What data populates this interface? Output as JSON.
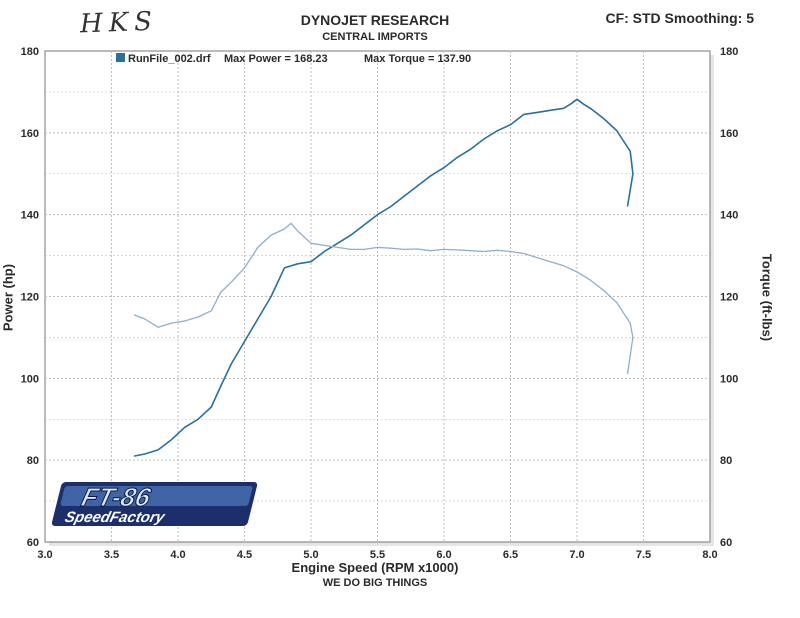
{
  "header": {
    "handwritten": "HKS",
    "title": "DYNOJET RESEARCH",
    "subtitle": "CENTRAL IMPORTS",
    "settings": "CF: STD  Smoothing: 5"
  },
  "footer": {
    "tagline": "WE DO BIG THINGS"
  },
  "logo": {
    "line1": "FT-86",
    "line2": "SpeedFactory",
    "color_dark": "#1d2f6b",
    "color_light": "#5b8fd6"
  },
  "colors": {
    "power": "#2a6f9e",
    "torque": "#8faecb",
    "grid": "#bdbdbd",
    "plot_bg": "#ffffff"
  },
  "chart_data": {
    "type": "line",
    "legend": {
      "run": "RunFile_002.drf",
      "max_power_text": "Max Power = 168.23",
      "max_torque_text": "Max Torque = 137.90"
    },
    "xlabel": "Engine Speed (RPM x1000)",
    "ylabel_left": "Power (hp)",
    "ylabel_right": "Torque (ft-lbs)",
    "xlim": [
      3.0,
      8.0
    ],
    "ylim": [
      60,
      180
    ],
    "x_ticks": [
      "3.0",
      "3.5",
      "4.0",
      "4.5",
      "5.0",
      "5.5",
      "6.0",
      "6.5",
      "7.0",
      "7.5",
      "8.0"
    ],
    "y_ticks_left": [
      "180",
      "160",
      "140",
      "120",
      "100",
      "80",
      "60"
    ],
    "y_ticks_right": [
      "180",
      "160",
      "140",
      "120",
      "100",
      "80",
      "60"
    ],
    "grid": true,
    "series": [
      {
        "name": "Power",
        "x": [
          3.67,
          3.75,
          3.85,
          3.95,
          4.05,
          4.15,
          4.25,
          4.32,
          4.4,
          4.5,
          4.6,
          4.7,
          4.8,
          4.9,
          5.0,
          5.1,
          5.2,
          5.3,
          5.4,
          5.5,
          5.6,
          5.7,
          5.8,
          5.9,
          6.0,
          6.1,
          6.2,
          6.3,
          6.4,
          6.5,
          6.6,
          6.7,
          6.8,
          6.9,
          6.95,
          7.0,
          7.05,
          7.1,
          7.2,
          7.3,
          7.35,
          7.4,
          7.42,
          7.38
        ],
        "values": [
          81,
          81.5,
          82.5,
          85,
          88,
          90,
          93,
          98,
          103.5,
          109,
          114.5,
          120,
          127,
          128,
          128.5,
          131,
          133,
          135,
          137.5,
          140,
          142,
          144.5,
          147,
          149.5,
          151.5,
          154,
          156,
          158.5,
          160.5,
          162,
          164.5,
          165,
          165.5,
          166,
          167,
          168.2,
          167,
          166,
          163.5,
          160.5,
          158,
          155.5,
          150,
          142
        ]
      },
      {
        "name": "Torque",
        "x": [
          3.67,
          3.75,
          3.85,
          3.95,
          4.05,
          4.15,
          4.25,
          4.32,
          4.4,
          4.5,
          4.6,
          4.7,
          4.8,
          4.85,
          4.9,
          5.0,
          5.1,
          5.2,
          5.3,
          5.4,
          5.5,
          5.6,
          5.7,
          5.8,
          5.9,
          6.0,
          6.1,
          6.2,
          6.3,
          6.4,
          6.5,
          6.6,
          6.7,
          6.8,
          6.9,
          7.0,
          7.1,
          7.2,
          7.3,
          7.35,
          7.4,
          7.42,
          7.38
        ],
        "values": [
          115.5,
          114.5,
          112.5,
          113.5,
          114,
          115,
          116.5,
          121,
          123.5,
          127,
          132,
          135,
          136.5,
          137.9,
          136,
          133,
          132.5,
          132,
          131.5,
          131.5,
          132,
          131.8,
          131.5,
          131.6,
          131.2,
          131.5,
          131.4,
          131.2,
          131,
          131.3,
          131,
          130.5,
          129.5,
          128.5,
          127.5,
          126,
          124,
          121.5,
          118.5,
          116,
          113.5,
          110,
          101
        ]
      }
    ]
  }
}
